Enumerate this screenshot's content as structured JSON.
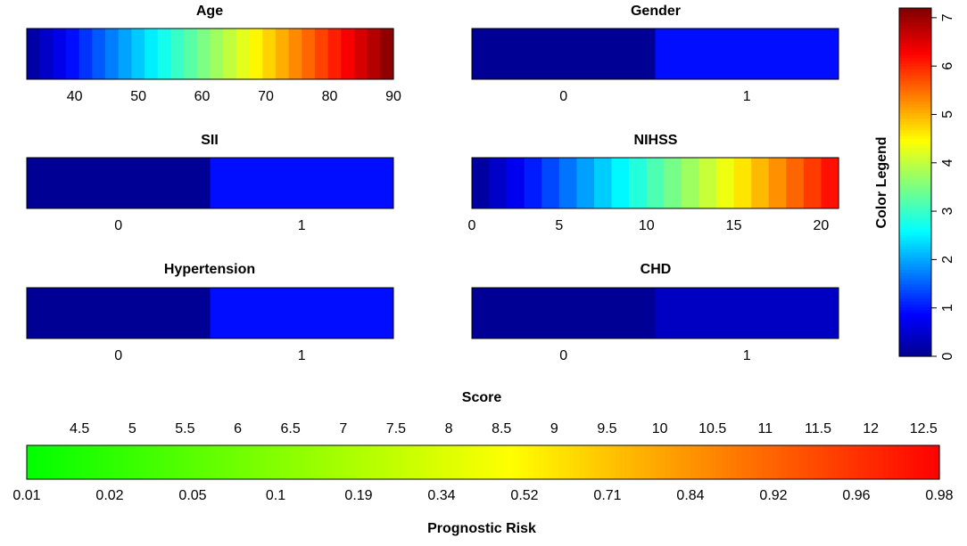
{
  "chart_data": {
    "type": "heatmap",
    "panels": [
      {
        "name": "age",
        "title": "Age",
        "min": 32.5,
        "max": 90,
        "ticks": [
          40,
          50,
          60,
          70,
          80,
          90
        ],
        "color_start": 0.06,
        "color_end": 7.2,
        "bins": 28
      },
      {
        "name": "gender",
        "title": "Gender",
        "categories": [
          "0",
          "1"
        ],
        "values": [
          0.05,
          0.95
        ]
      },
      {
        "name": "sii",
        "title": "SII",
        "categories": [
          "0",
          "1"
        ],
        "values": [
          0.05,
          0.95
        ]
      },
      {
        "name": "nihss",
        "title": "NIHSS",
        "min": 0,
        "max": 21,
        "ticks": [
          0,
          5,
          10,
          15,
          20
        ],
        "color_start": 0.0,
        "color_end": 6.3,
        "bins": 21
      },
      {
        "name": "hypertension",
        "title": "Hypertension",
        "categories": [
          "0",
          "1"
        ],
        "values": [
          0.05,
          0.95
        ]
      },
      {
        "name": "chd",
        "title": "CHD",
        "categories": [
          "0",
          "1"
        ],
        "values": [
          0.05,
          0.4
        ]
      }
    ],
    "color_legend": {
      "label": "Color Legend",
      "min": 0,
      "max": 7.2,
      "ticks": [
        0,
        1,
        2,
        3,
        4,
        5,
        6,
        7
      ]
    },
    "score": {
      "title": "Score",
      "min": 4.0,
      "max": 12.65,
      "ticks": [
        "4.5",
        "5",
        "5.5",
        "6",
        "6.5",
        "7",
        "7.5",
        "8",
        "8.5",
        "9",
        "9.5",
        "10",
        "10.5",
        "11",
        "11.5",
        "12",
        "12.5"
      ]
    },
    "risk": {
      "label": "Prognostic Risk",
      "ticks": [
        "0.01",
        "0.02",
        "0.05",
        "0.1",
        "0.19",
        "0.34",
        "0.52",
        "0.71",
        "0.84",
        "0.92",
        "0.96",
        "0.98"
      ]
    }
  },
  "colors": {
    "border": "#000000",
    "green": "#00ff00",
    "yellow": "#ffff00",
    "red": "#ff0000"
  }
}
